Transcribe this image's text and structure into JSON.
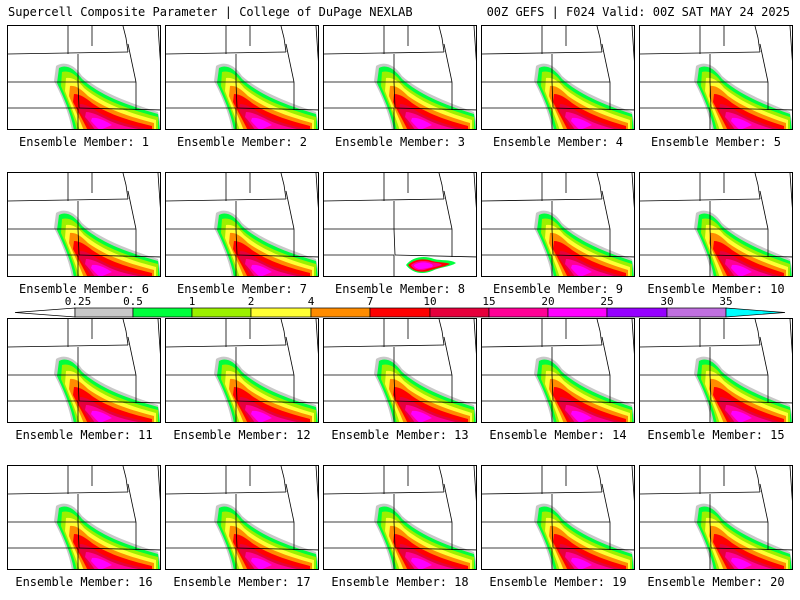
{
  "header": {
    "left": "Supercell Composite Parameter | College of DuPage NEXLAB",
    "right": "00Z GEFS | F024 Valid: 00Z SAT MAY 24 2025"
  },
  "member_label_prefix": "Ensemble Member:",
  "members": [
    {
      "id": "1"
    },
    {
      "id": "2"
    },
    {
      "id": "3"
    },
    {
      "id": "4"
    },
    {
      "id": "5"
    },
    {
      "id": "6"
    },
    {
      "id": "7"
    },
    {
      "id": "8"
    },
    {
      "id": "9"
    },
    {
      "id": "10"
    },
    {
      "id": "11"
    },
    {
      "id": "12"
    },
    {
      "id": "13"
    },
    {
      "id": "14"
    },
    {
      "id": "15"
    },
    {
      "id": "16"
    },
    {
      "id": "17"
    },
    {
      "id": "18"
    },
    {
      "id": "19"
    },
    {
      "id": "20"
    }
  ],
  "colorbar": {
    "labels": [
      "0.25",
      "0.5",
      "1",
      "2",
      "4",
      "7",
      "10",
      "15",
      "20",
      "25",
      "30",
      "35"
    ],
    "colors": [
      "#c8c8c8",
      "#00ff3c",
      "#9bf000",
      "#ffff33",
      "#ff8c00",
      "#ff0000",
      "#e6003c",
      "#ff0096",
      "#ff00ff",
      "#9600ff",
      "#c070e0",
      "#00ffff"
    ]
  },
  "palette": {
    "gray": "#c8c8c8",
    "green": "#00ff3c",
    "yellowgreen": "#9bf000",
    "yellow": "#ffff33",
    "orange": "#ff8c00",
    "red": "#ff0000",
    "crimson": "#e6003c",
    "pink": "#ff0096",
    "magenta": "#ff00ff",
    "purple": "#9600ff"
  }
}
